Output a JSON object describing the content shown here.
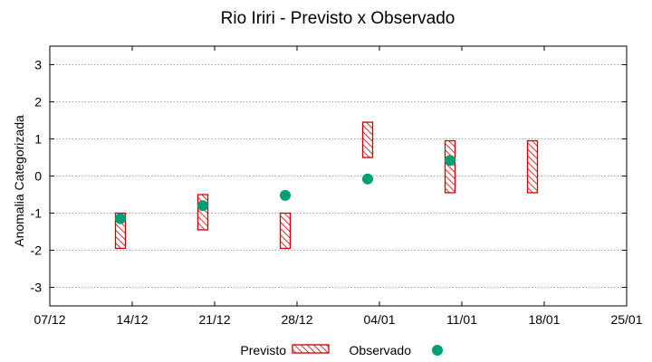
{
  "chart_data": {
    "type": "scatter",
    "title": "Rio Iriri - Previsto x Observado",
    "xlabel": "",
    "ylabel": "Anomalia Categorizada",
    "xlim": [
      "2023-12-07",
      "2024-01-25"
    ],
    "ylim": [
      -3.5,
      3.5
    ],
    "x_ticks": [
      {
        "date": "2023-12-07",
        "label": "07/12"
      },
      {
        "date": "2023-12-14",
        "label": "14/12"
      },
      {
        "date": "2023-12-21",
        "label": "21/12"
      },
      {
        "date": "2023-12-28",
        "label": "28/12"
      },
      {
        "date": "2024-01-04",
        "label": "04/01"
      },
      {
        "date": "2024-01-11",
        "label": "11/01"
      },
      {
        "date": "2024-01-18",
        "label": "18/01"
      },
      {
        "date": "2024-01-25",
        "label": "25/01"
      }
    ],
    "y_ticks": [
      {
        "value": 3,
        "label": "3"
      },
      {
        "value": 2,
        "label": "2"
      },
      {
        "value": 1,
        "label": "1"
      },
      {
        "value": 0,
        "label": "0"
      },
      {
        "value": -1,
        "label": "-1"
      },
      {
        "value": -2,
        "label": "-2"
      },
      {
        "value": -3,
        "label": "-3"
      }
    ],
    "grid": true,
    "legend_position": "bottom",
    "series": [
      {
        "name": "Previsto",
        "kind": "range",
        "color": "#cc0000",
        "points": [
          {
            "x": "2023-12-13",
            "low": -1.95,
            "high": -1.0
          },
          {
            "x": "2023-12-20",
            "low": -1.45,
            "high": -0.5
          },
          {
            "x": "2023-12-27",
            "low": -1.95,
            "high": -1.0
          },
          {
            "x": "2024-01-03",
            "low": 0.5,
            "high": 1.45
          },
          {
            "x": "2024-01-10",
            "low": -0.45,
            "high": 0.95
          },
          {
            "x": "2024-01-17",
            "low": -0.45,
            "high": 0.95
          }
        ]
      },
      {
        "name": "Observado",
        "kind": "point",
        "color": "#009e73",
        "points": [
          {
            "x": "2023-12-13",
            "y": -1.15
          },
          {
            "x": "2023-12-20",
            "y": -0.8
          },
          {
            "x": "2023-12-27",
            "y": -0.52
          },
          {
            "x": "2024-01-03",
            "y": -0.08
          },
          {
            "x": "2024-01-10",
            "y": 0.42
          }
        ]
      }
    ]
  }
}
